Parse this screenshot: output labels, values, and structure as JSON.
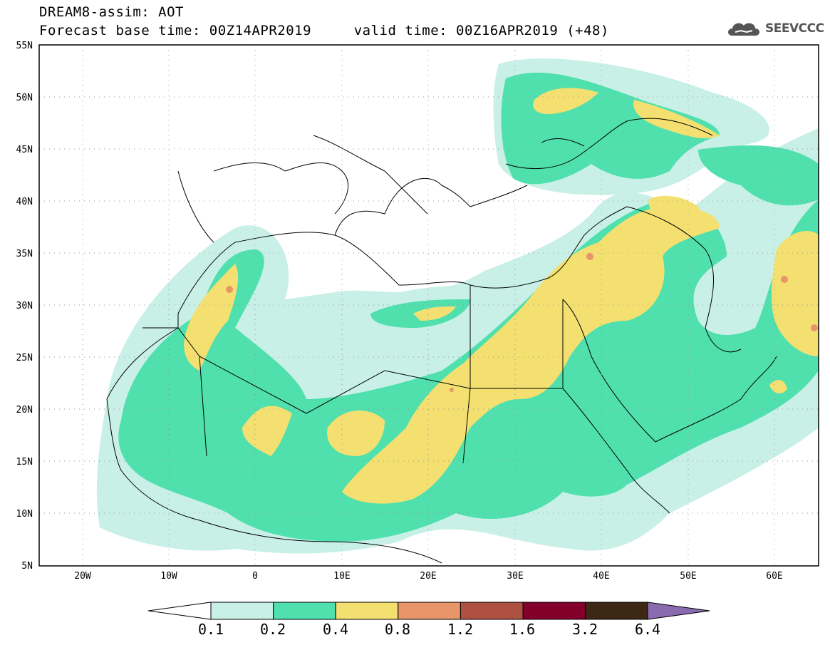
{
  "header": {
    "title_line1": "DREAM8-assim: AOT",
    "title_line2": "Forecast base time: 00Z14APR2019     valid time: 00Z16APR2019 (+48)"
  },
  "logo": {
    "text": "SEEVCCC",
    "icon": "cloud-icon"
  },
  "map": {
    "region": "North Africa, Middle East, Mediterranean",
    "lon_range": [
      -25,
      65
    ],
    "lat_range": [
      5,
      55
    ],
    "grid": "dotted",
    "lat_labels": [
      "55N",
      "50N",
      "45N",
      "40N",
      "35N",
      "30N",
      "25N",
      "20N",
      "15N",
      "10N",
      "5N"
    ],
    "lat_values": [
      55,
      50,
      45,
      40,
      35,
      30,
      25,
      20,
      15,
      10,
      5
    ],
    "lon_labels": [
      "20W",
      "10W",
      "0",
      "10E",
      "20E",
      "30E",
      "40E",
      "50E",
      "60E"
    ],
    "lon_values": [
      -20,
      -10,
      0,
      10,
      20,
      30,
      40,
      50,
      60
    ]
  },
  "colorbar": {
    "labels": [
      "0.1",
      "0.2",
      "0.4",
      "0.8",
      "1.2",
      "1.6",
      "3.2",
      "6.4"
    ],
    "colors": [
      "#c8f0e6",
      "#4fe0ae",
      "#f3e071",
      "#e8956a",
      "#ae5142",
      "#83002a",
      "#3c2814"
    ],
    "under_color": "#ffffff",
    "over_color": "#8b6bb0"
  }
}
